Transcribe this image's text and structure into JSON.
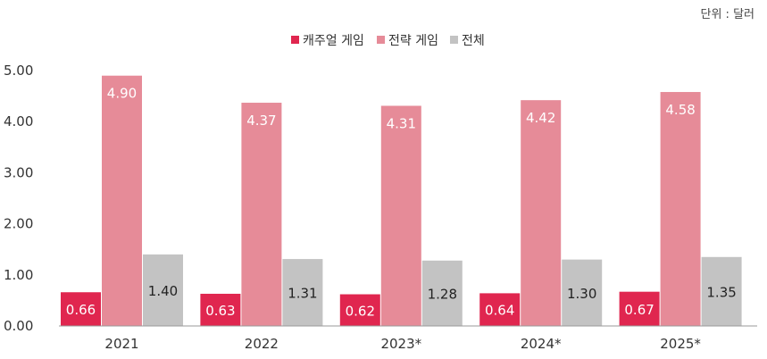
{
  "unit_label": "단위 : 달러",
  "chart_data": {
    "type": "bar",
    "categories": [
      "2021",
      "2022",
      "2023*",
      "2024*",
      "2025*"
    ],
    "series": [
      {
        "name": "캐주얼 게임",
        "color": "#e0264f",
        "values": [
          0.66,
          0.63,
          0.62,
          0.64,
          0.67
        ],
        "labels": [
          "0.66",
          "0.63",
          "0.62",
          "0.64",
          "0.67"
        ]
      },
      {
        "name": "전략 게임",
        "color": "#e68b98",
        "values": [
          4.9,
          4.37,
          4.31,
          4.42,
          4.58
        ],
        "labels": [
          "4.90",
          "4.37",
          "4.31",
          "4.42",
          "4.58"
        ]
      },
      {
        "name": "전체",
        "color": "#c3c3c3",
        "values": [
          1.4,
          1.31,
          1.28,
          1.3,
          1.35
        ],
        "labels": [
          "1.40",
          "1.31",
          "1.28",
          "1.30",
          "1.35"
        ]
      }
    ],
    "yticks": [
      "0.00",
      "1.00",
      "2.00",
      "3.00",
      "4.00",
      "5.00"
    ],
    "ylim": [
      0,
      5
    ],
    "grid": false,
    "legend_position": "top-center"
  }
}
